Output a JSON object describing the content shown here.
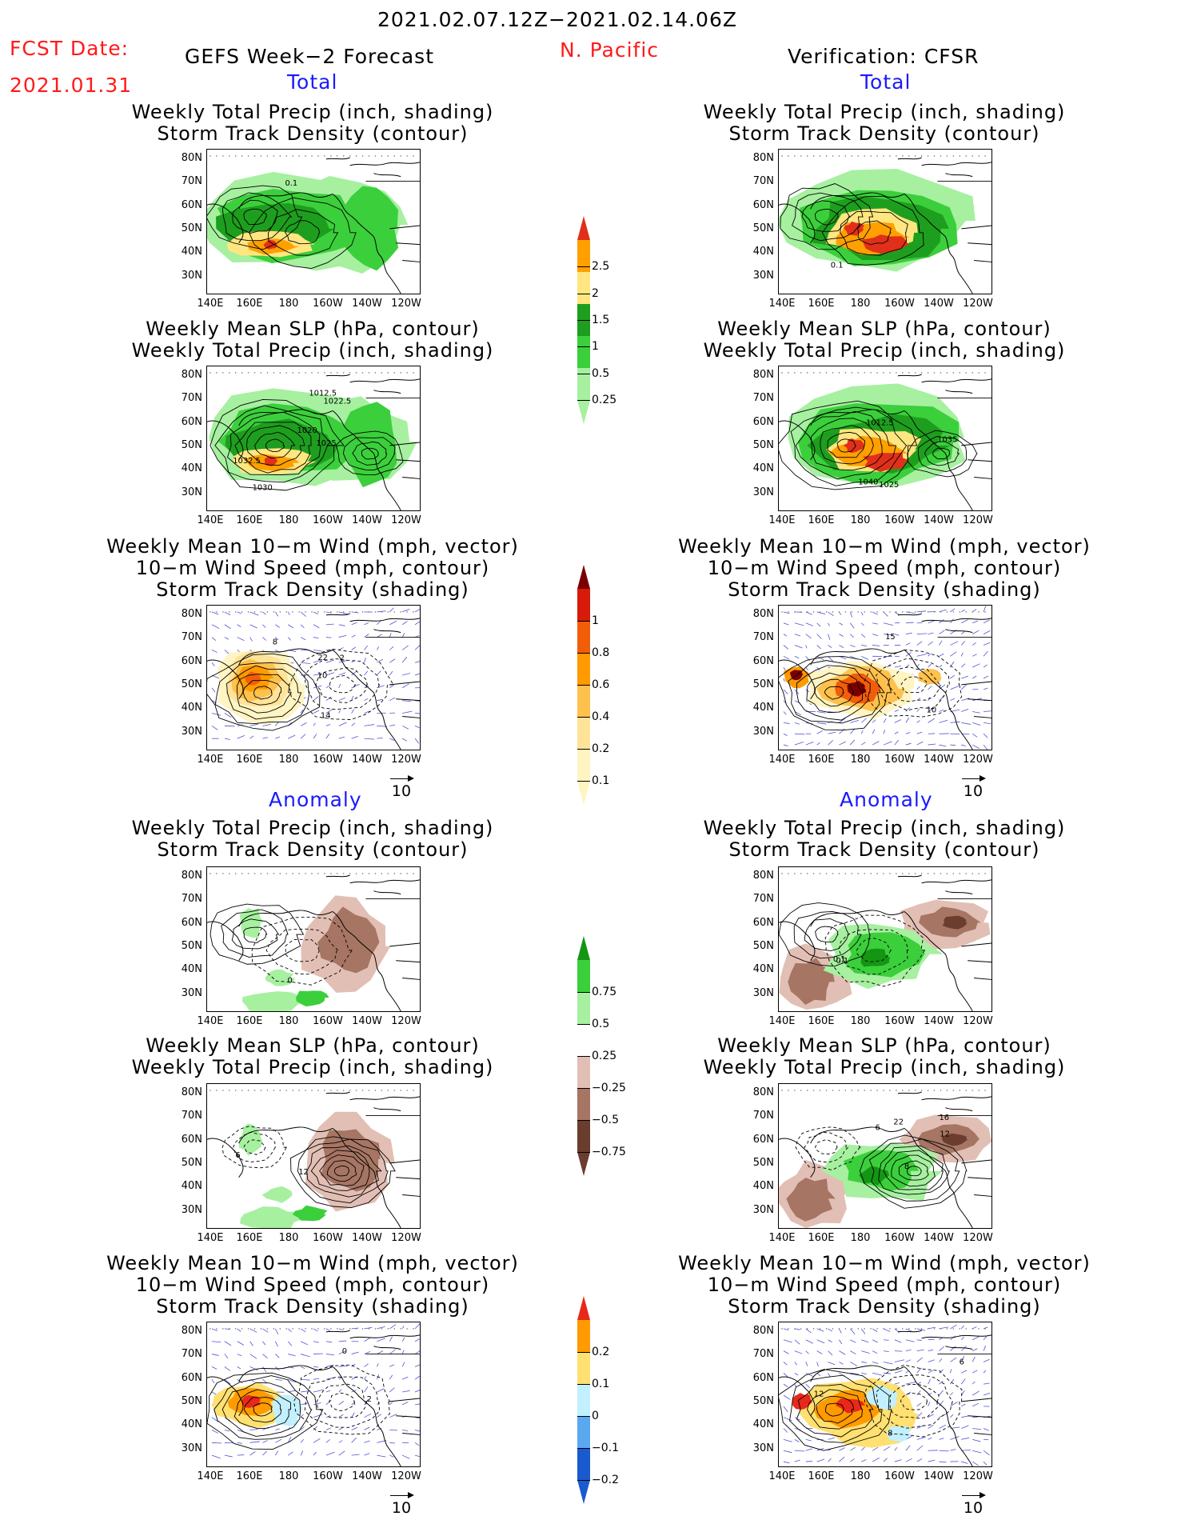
{
  "header": {
    "date_range": "2021.02.07.12Z−2021.02.14.06Z",
    "fcst_label": "FCST Date:",
    "fcst_date": "2021.01.31",
    "model_title": "GEFS Week−2 Forecast",
    "region": "N. Pacific",
    "verification": "Verification: CFSR"
  },
  "sections": {
    "total": "Total",
    "anomaly": "Anomaly"
  },
  "panel_titles": {
    "precip_track": [
      "Weekly Total Precip (inch, shading)",
      "Storm Track Density (contour)"
    ],
    "slp_precip": [
      "Weekly Mean SLP (hPa, contour)",
      "Weekly Total Precip (inch, shading)"
    ],
    "wind_track": [
      "Weekly Mean 10−m Wind (mph, vector)",
      "10−m Wind Speed (mph, contour)",
      "Storm Track Density (shading)"
    ]
  },
  "axes": {
    "lat_labels": [
      "80N",
      "70N",
      "60N",
      "50N",
      "40N",
      "30N"
    ],
    "lon_labels": [
      "140E",
      "160E",
      "180",
      "160W",
      "140W",
      "120W"
    ]
  },
  "vector_reference": "10",
  "contour_labels": {
    "fc_total_precip": [
      "0.1"
    ],
    "ob_total_precip": [
      "0.1"
    ],
    "fc_total_slp": [
      "1032.5",
      "1030",
      "1020",
      "1025",
      "1022.5",
      "1012.5"
    ],
    "ob_total_slp": [
      "1035",
      "1040",
      "1025",
      "1012.5"
    ],
    "fc_total_wind": [
      "2",
      "14",
      "10",
      "8",
      "22"
    ],
    "ob_total_wind": [
      "15",
      "10"
    ],
    "fc_anom_precip": [
      "0"
    ],
    "ob_anom_precip": [
      "0.1",
      "0.1"
    ],
    "fc_anom_slp": [
      "6",
      "12"
    ],
    "ob_anom_slp": [
      "12",
      "8",
      "16",
      "22",
      "6"
    ],
    "fc_anom_wind": [
      "0",
      "2"
    ],
    "ob_anom_wind": [
      "8",
      "12",
      "6"
    ]
  },
  "colorbars": {
    "precip_total": {
      "ticks": [
        "2.5",
        "2",
        "1.5",
        "1",
        "0.5",
        "0.25"
      ],
      "colors": [
        "#e0301a",
        "#ffa000",
        "#ffe680",
        "#1e9e1e",
        "#3ccf3c",
        "#a6f0a0"
      ]
    },
    "track_total": {
      "ticks": [
        "1",
        "0.8",
        "0.6",
        "0.4",
        "0.2",
        "0.1"
      ],
      "colors": [
        "#7a0000",
        "#d81a0a",
        "#f25d0a",
        "#ff9a00",
        "#ffc14d",
        "#ffe399",
        "#fff4c2"
      ]
    },
    "precip_anom": {
      "ticks": [
        "0.75",
        "0.5",
        "0.25",
        "−0.25",
        "−0.5",
        "−0.75"
      ],
      "colors": [
        "#149614",
        "#3ccf3c",
        "#a6f0a0",
        "#ffffff",
        "#e2bfb4",
        "#a67563",
        "#6b3d2e"
      ]
    },
    "track_anom": {
      "ticks": [
        "0.2",
        "0.1",
        "0",
        "−0.1",
        "−0.2"
      ],
      "colors": [
        "#e8281a",
        "#ff9a00",
        "#ffe070",
        "#c2f0ff",
        "#5aa8f0",
        "#1a5acf"
      ]
    }
  },
  "colors": {
    "land_line": "#000000",
    "vector": "#5050d8"
  }
}
